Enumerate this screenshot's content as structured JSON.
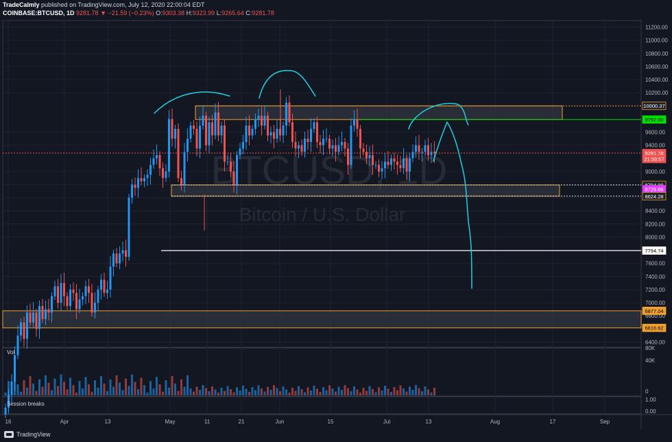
{
  "header": {
    "author": "TradeCalmly",
    "published": "published on TradingView.com, July 12, 2020 22:00:04 EDT",
    "symbol": "COINBASE:BTCUSD, 1D",
    "last": "9281.78",
    "change": "▼ −21.59 (−0.23%)",
    "o_label": "O:",
    "o": "9303.38",
    "h_label": "H:",
    "h": "9323.99",
    "l_label": "L:",
    "l": "9265.64",
    "c_label": "C:",
    "c": "9281.78"
  },
  "watermark": {
    "symbol": "BTCUSD, 1D",
    "name": "Bitcoin / U.S. Dollar"
  },
  "footer": {
    "brand": "TradingView"
  },
  "colors": {
    "bg": "#131722",
    "grid": "#1e2330",
    "up": "#26a69a",
    "down": "#ef5350",
    "blue": "#2196f3",
    "drawing": "#1fd1e0",
    "zone": "#f0a030",
    "green": "#00e000",
    "magenta": "#e040fb"
  },
  "chart_data": {
    "type": "candlestick",
    "title": "COINBASE:BTCUSD, 1D",
    "ylim": [
      6300,
      11300
    ],
    "y_ticks": [
      "11200.00",
      "11000.00",
      "10800.00",
      "10600.00",
      "10400.00",
      "10200.00",
      "9600.00",
      "9400.00",
      "9000.00",
      "8800.00",
      "8600.00",
      "8400.00",
      "8200.00",
      "8000.00",
      "7600.00",
      "7400.00",
      "7200.00",
      "7000.00",
      "6800.00",
      "6400.00"
    ],
    "x_labels": [
      "16",
      "Apr",
      "13",
      "May",
      "11",
      "21",
      "Jun",
      "15",
      "Jul",
      "13",
      "Aug",
      "17",
      "Sep"
    ],
    "price_labels": [
      {
        "text": "10000.37",
        "value": 10000.37,
        "kind": "zone"
      },
      {
        "text": "9792.00",
        "value": 9792.0,
        "kind": "green"
      },
      {
        "text": "9281.78",
        "value": 9281.78,
        "kind": "last"
      },
      {
        "text": "21:59:57",
        "value": 9190,
        "kind": "timer"
      },
      {
        "text": "8794.99",
        "value": 8794.99,
        "kind": "zone"
      },
      {
        "text": "8729.86",
        "value": 8729.86,
        "kind": "magenta"
      },
      {
        "text": "8624.28",
        "value": 8624.28,
        "kind": "zone"
      },
      {
        "text": "7794.74",
        "value": 7794.74,
        "kind": "white"
      },
      {
        "text": "6877.04",
        "value": 6877.04,
        "kind": "orange"
      },
      {
        "text": "6616.62",
        "value": 6616.62,
        "kind": "orange"
      }
    ],
    "volume_label": "Vol",
    "volume_ticks": [
      "80K",
      "40K",
      "0"
    ],
    "session_label": "Session breaks",
    "session_ticks": [
      "1.00",
      "0.00"
    ]
  }
}
